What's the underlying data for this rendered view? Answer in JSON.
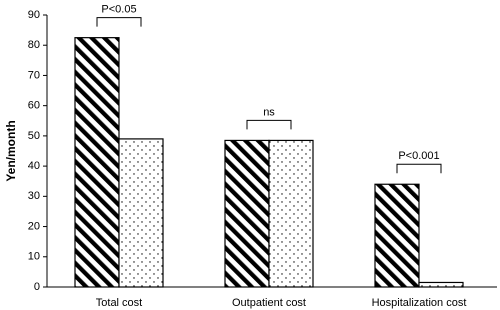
{
  "chart_data": {
    "type": "bar",
    "y_label": "Yen/month",
    "categories": [
      "Total cost",
      "Outpatient cost",
      "Hospitalization cost"
    ],
    "series": [
      {
        "color": "#000000",
        "pattern": "hatch",
        "values": [
          82.5,
          48.5,
          34
        ]
      },
      {
        "color": "#000000",
        "pattern": "dots",
        "values": [
          49,
          48.5,
          1.5
        ]
      }
    ],
    "ylim": [
      0,
      90
    ],
    "yticks": [
      0,
      10,
      20,
      30,
      40,
      50,
      60,
      70,
      80,
      90
    ],
    "grid": false,
    "annotations": [
      {
        "text": "P<0.05",
        "category": 0
      },
      {
        "text": "ns",
        "category": 1
      },
      {
        "text": "P<0.001",
        "category": 2
      }
    ]
  }
}
